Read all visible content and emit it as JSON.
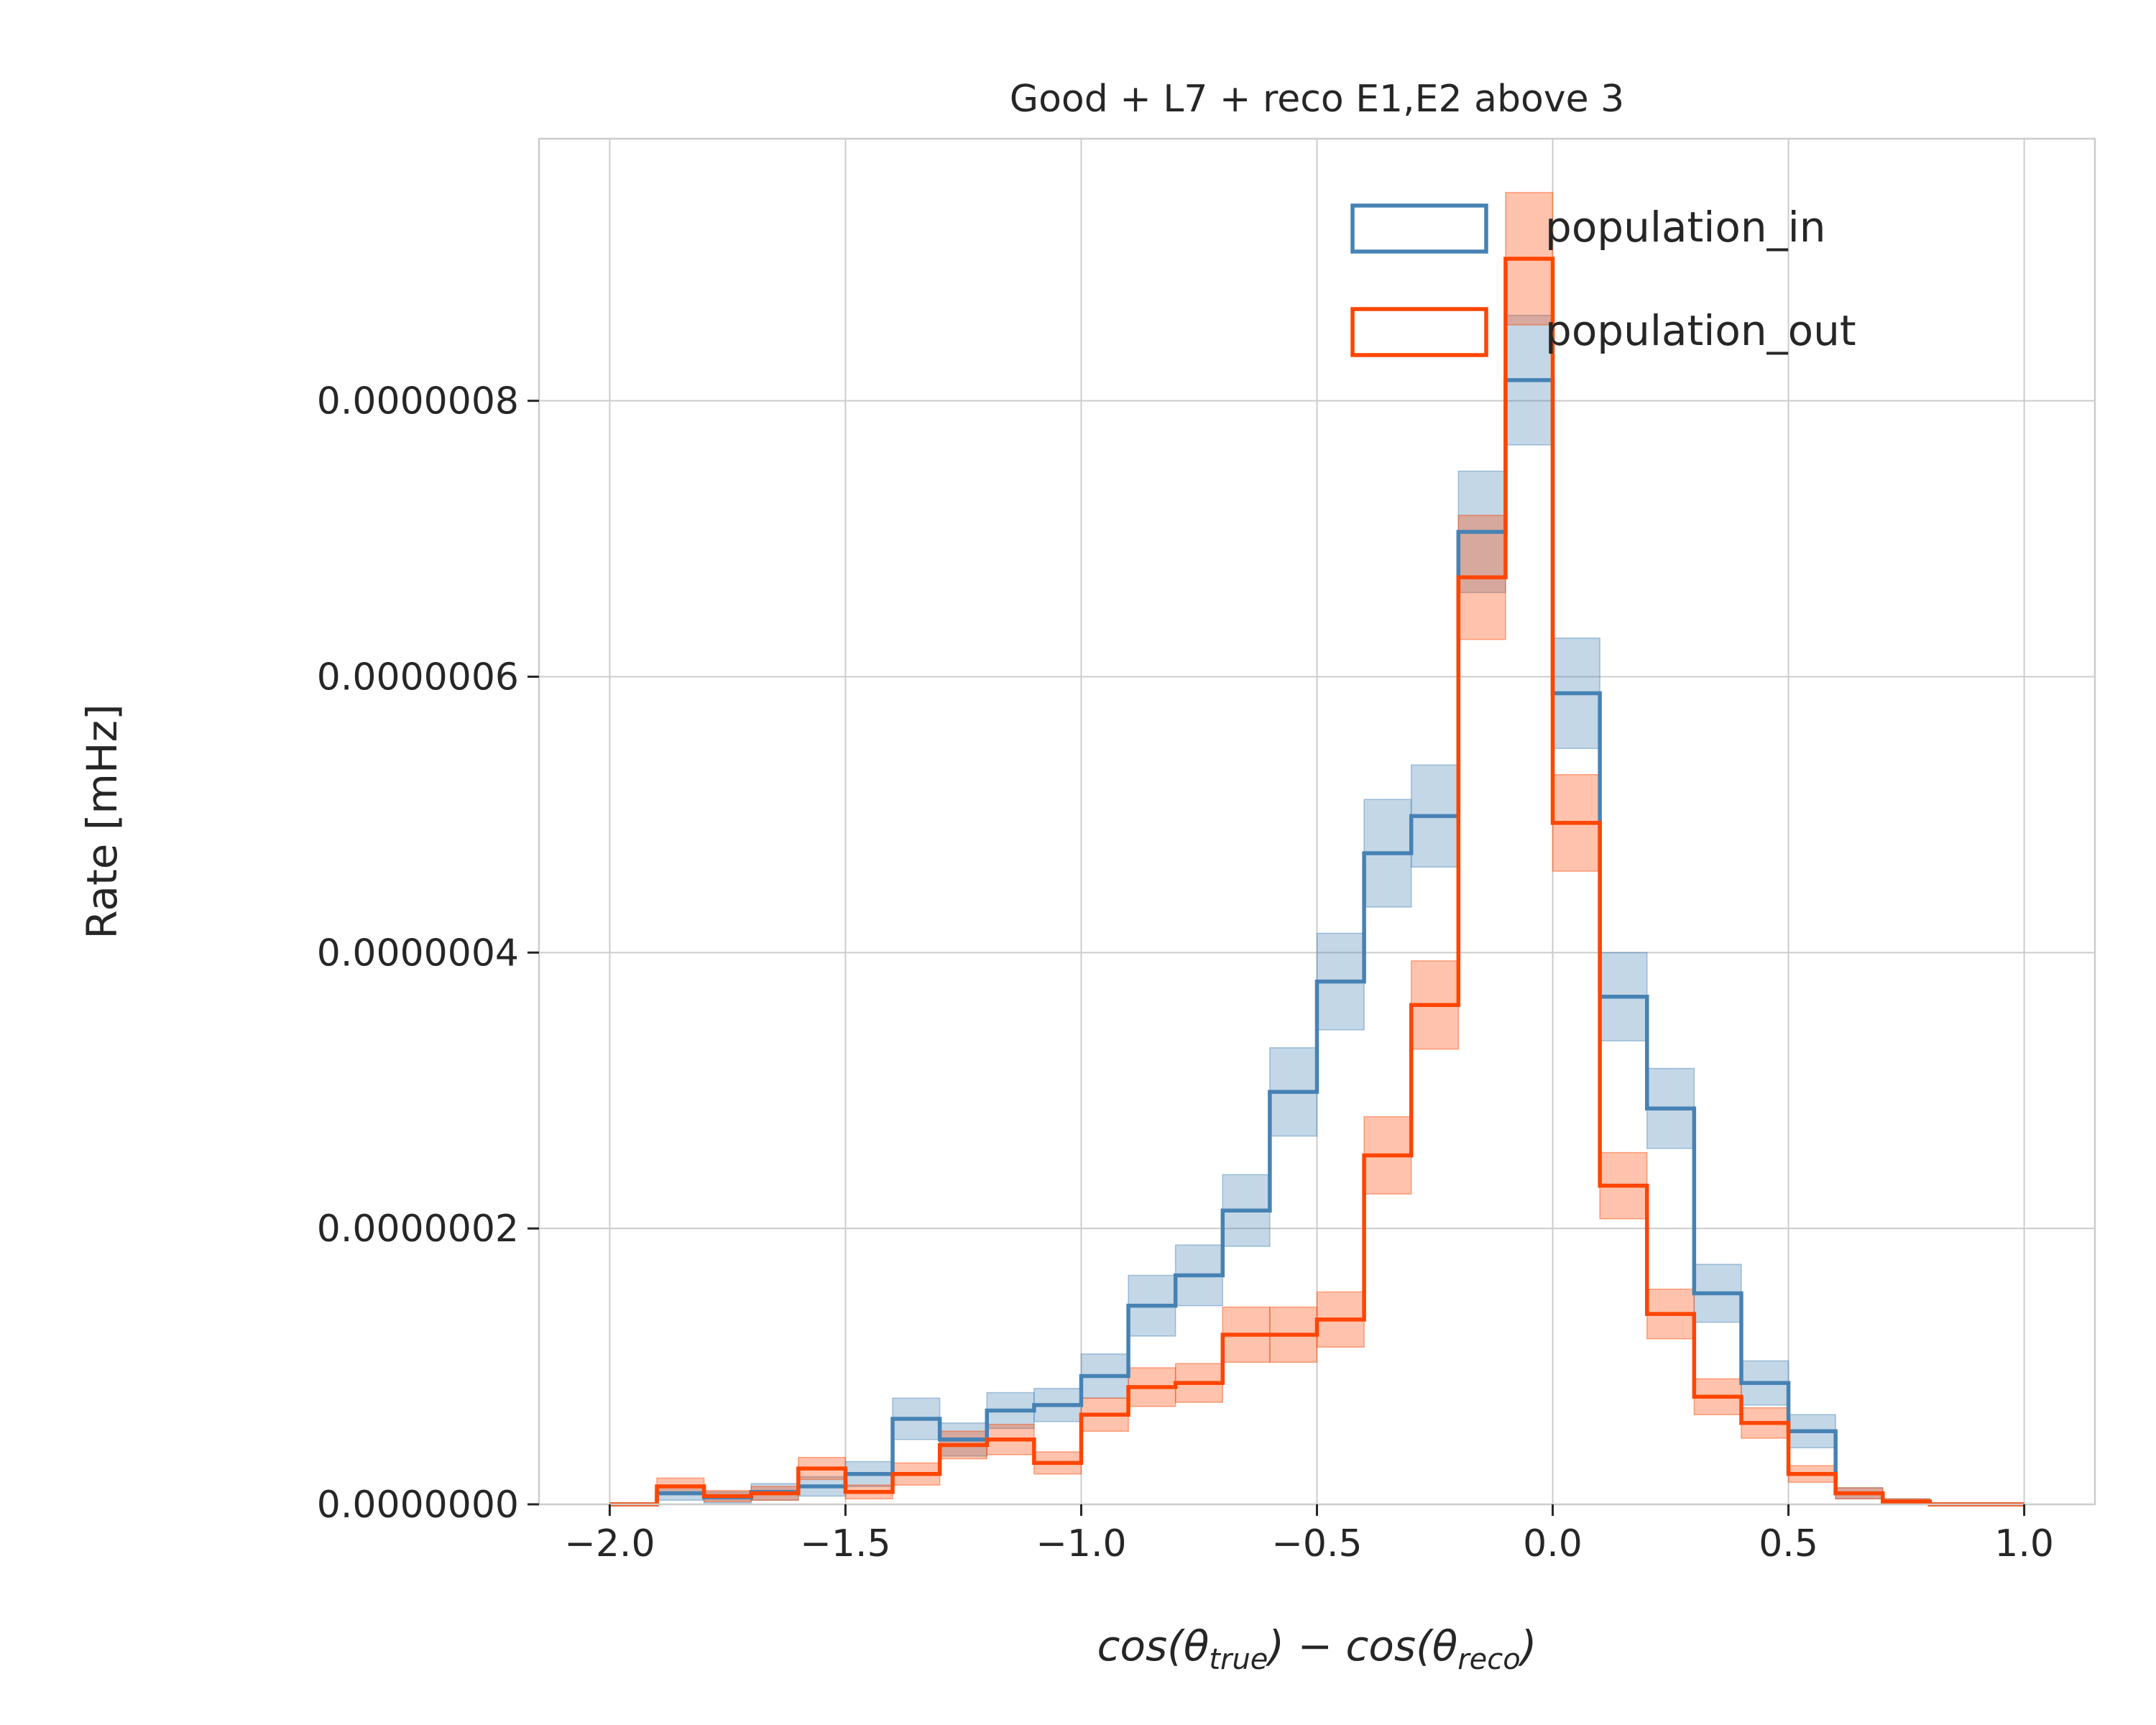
{
  "chart_data": {
    "type": "step-histogram",
    "title": "Good + L7 + reco E1,E2 above 3",
    "ylabel": "Rate [mHz]",
    "xlabel": {
      "prefix": "cos(θ",
      "sub1": "true",
      "middle": ") − cos(θ",
      "sub2": "reco",
      "suffix": ")"
    },
    "xlim": [
      -2.15,
      1.15
    ],
    "ylim": [
      0,
      9.9e-07
    ],
    "x_ticks": [
      {
        "value": -2.0,
        "label": "−2.0"
      },
      {
        "value": -1.5,
        "label": "−1.5"
      },
      {
        "value": -1.0,
        "label": "−1.0"
      },
      {
        "value": -0.5,
        "label": "−0.5"
      },
      {
        "value": 0.0,
        "label": "0.0"
      },
      {
        "value": 0.5,
        "label": "0.5"
      },
      {
        "value": 1.0,
        "label": "1.0"
      }
    ],
    "y_ticks": [
      {
        "value": 0,
        "label": "0.0000000"
      },
      {
        "value": 2e-07,
        "label": "0.0000002"
      },
      {
        "value": 4e-07,
        "label": "0.0000004"
      },
      {
        "value": 6e-07,
        "label": "0.0000006"
      },
      {
        "value": 8e-07,
        "label": "0.0000008"
      }
    ],
    "grid": true,
    "legend_position": "top-right",
    "bin_edges": [
      -2.0,
      -1.9,
      -1.8,
      -1.7,
      -1.6,
      -1.5,
      -1.4,
      -1.3,
      -1.2,
      -1.1,
      -1.0,
      -0.9,
      -0.8,
      -0.7,
      -0.6,
      -0.5,
      -0.4,
      -0.3,
      -0.2,
      -0.1,
      0.0,
      0.1,
      0.2,
      0.3,
      0.4,
      0.5,
      0.6,
      0.7,
      0.8,
      0.9,
      1.0
    ],
    "series": [
      {
        "name": "population_in",
        "color": "#4682b4",
        "values": [
          0,
          8e-09,
          5e-09,
          9e-09,
          1.3e-08,
          2.2e-08,
          6.2e-08,
          4.7e-08,
          6.8e-08,
          7.2e-08,
          9.3e-08,
          1.44e-07,
          1.66e-07,
          2.13e-07,
          2.99e-07,
          3.79e-07,
          4.72e-07,
          4.99e-07,
          7.05e-07,
          8.15e-07,
          5.88e-07,
          3.68e-07,
          2.87e-07,
          1.53e-07,
          8.8e-08,
          5.3e-08,
          8e-09,
          2e-09,
          0,
          0
        ],
        "errors": [
          0,
          5e-09,
          4e-09,
          6e-09,
          7e-09,
          9e-09,
          1.5e-08,
          1.2e-08,
          1.3e-08,
          1.2e-08,
          1.6e-08,
          2.2e-08,
          2.2e-08,
          2.6e-08,
          3.2e-08,
          3.5e-08,
          3.9e-08,
          3.7e-08,
          4.4e-08,
          4.7e-08,
          4e-08,
          3.2e-08,
          2.9e-08,
          2.1e-08,
          1.6e-08,
          1.2e-08,
          4e-09,
          2e-09,
          0,
          0
        ]
      },
      {
        "name": "population_out",
        "color": "#ff4500",
        "values": [
          0,
          1.3e-08,
          6e-09,
          8e-09,
          2.6e-08,
          9e-09,
          2.2e-08,
          4.3e-08,
          4.7e-08,
          3e-08,
          6.5e-08,
          8.5e-08,
          8.8e-08,
          1.23e-07,
          1.23e-07,
          1.34e-07,
          2.53e-07,
          3.62e-07,
          6.72e-07,
          9.03e-07,
          4.94e-07,
          2.31e-07,
          1.38e-07,
          7.8e-08,
          5.9e-08,
          2.2e-08,
          8e-09,
          2e-09,
          0,
          0
        ],
        "errors": [
          0,
          6e-09,
          4e-09,
          5e-09,
          8e-09,
          5e-09,
          8e-09,
          1e-08,
          1.1e-08,
          8e-09,
          1.2e-08,
          1.4e-08,
          1.4e-08,
          2e-08,
          2e-08,
          2e-08,
          2.8e-08,
          3.2e-08,
          4.5e-08,
          4.8e-08,
          3.5e-08,
          2.4e-08,
          1.8e-08,
          1.3e-08,
          1.1e-08,
          6e-09,
          4e-09,
          2e-09,
          0,
          0
        ]
      }
    ]
  }
}
